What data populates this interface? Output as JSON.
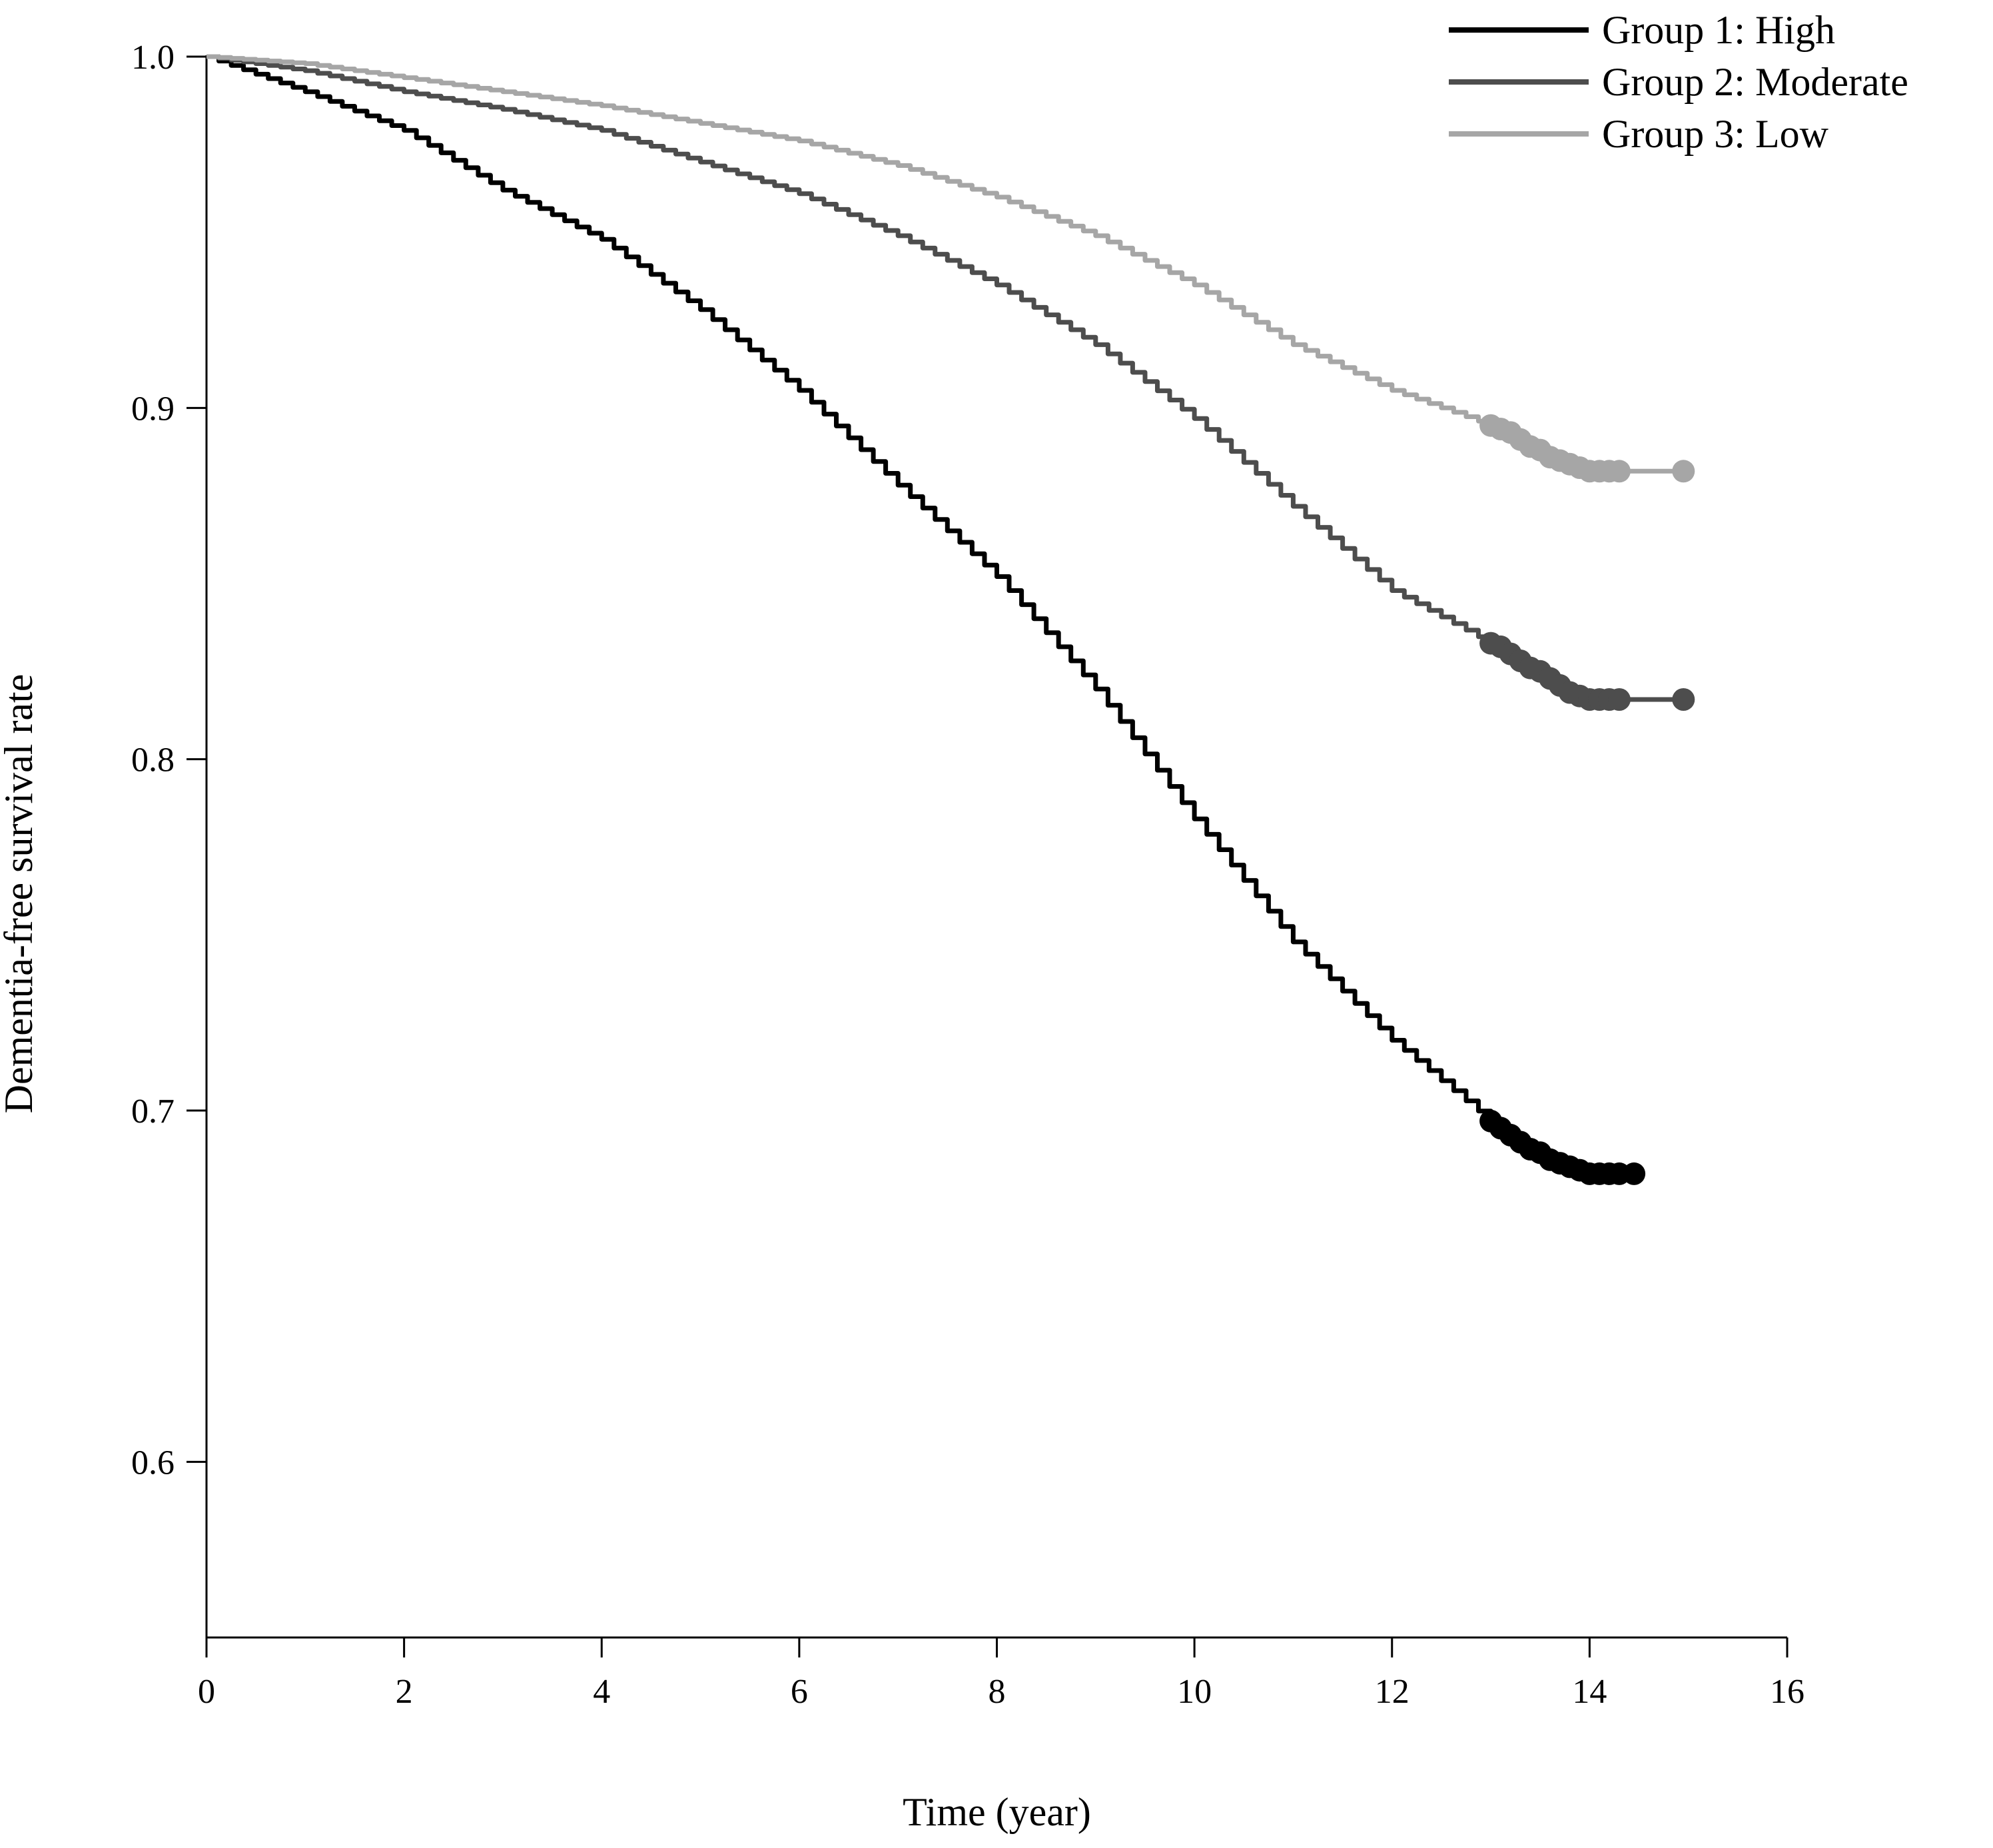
{
  "chart_data": {
    "type": "line",
    "title": "",
    "xlabel": "Time (year)",
    "ylabel": "Dementia-free survival rate",
    "xlim": [
      0,
      16
    ],
    "ylim": [
      0.55,
      1.0
    ],
    "xticks": [
      0,
      2,
      4,
      6,
      8,
      10,
      12,
      14,
      16
    ],
    "xtick_labels": [
      "0",
      "2",
      "4",
      "6",
      "8",
      "10",
      "12",
      "14",
      "16"
    ],
    "yticks": [
      0.6,
      0.7,
      0.8,
      0.9,
      1.0
    ],
    "ytick_labels": [
      "0.6",
      "0.7",
      "0.8",
      "0.9",
      "1.0"
    ],
    "grid": false,
    "legend_position": "top-right",
    "series": [
      {
        "name": "Group 1: High",
        "color": "#000000",
        "x": [
          0,
          1,
          2,
          3,
          4,
          5,
          6,
          7,
          8,
          9,
          10,
          11,
          12,
          13,
          13.5,
          14,
          14.5
        ],
        "y": [
          1.0,
          0.99,
          0.979,
          0.962,
          0.948,
          0.928,
          0.905,
          0.878,
          0.852,
          0.82,
          0.783,
          0.748,
          0.72,
          0.697,
          0.688,
          0.682,
          0.682
        ],
        "censor_x": [
          13.0,
          13.1,
          13.2,
          13.3,
          13.4,
          13.5,
          13.6,
          13.7,
          13.8,
          13.9,
          14.0,
          14.1,
          14.2,
          14.3,
          14.45
        ],
        "censor_y": [
          0.697,
          0.695,
          0.693,
          0.691,
          0.689,
          0.688,
          0.686,
          0.685,
          0.684,
          0.683,
          0.682,
          0.682,
          0.682,
          0.682,
          0.682
        ]
      },
      {
        "name": "Group 2: Moderate",
        "color": "#4d4d4d",
        "x": [
          0,
          1,
          2,
          3,
          4,
          5,
          6,
          7,
          8,
          9,
          10,
          11,
          12,
          13,
          13.5,
          14,
          15
        ],
        "y": [
          1.0,
          0.996,
          0.99,
          0.985,
          0.979,
          0.97,
          0.961,
          0.949,
          0.935,
          0.918,
          0.897,
          0.872,
          0.848,
          0.833,
          0.825,
          0.817,
          0.817
        ],
        "censor_x": [
          13.0,
          13.1,
          13.2,
          13.3,
          13.4,
          13.5,
          13.6,
          13.7,
          13.8,
          13.9,
          14.0,
          14.1,
          14.2,
          14.3,
          14.95
        ],
        "censor_y": [
          0.833,
          0.832,
          0.83,
          0.828,
          0.826,
          0.825,
          0.823,
          0.821,
          0.819,
          0.818,
          0.817,
          0.817,
          0.817,
          0.817,
          0.817
        ]
      },
      {
        "name": "Group 3: Low",
        "color": "#a6a6a6",
        "x": [
          0,
          1,
          2,
          3,
          4,
          5,
          6,
          7,
          8,
          9,
          10,
          11,
          12,
          13,
          13.5,
          14,
          15
        ],
        "y": [
          1.0,
          0.998,
          0.994,
          0.99,
          0.986,
          0.981,
          0.976,
          0.969,
          0.96,
          0.949,
          0.935,
          0.918,
          0.905,
          0.895,
          0.888,
          0.882,
          0.882
        ],
        "censor_x": [
          13.0,
          13.1,
          13.2,
          13.3,
          13.4,
          13.5,
          13.6,
          13.7,
          13.8,
          13.9,
          14.0,
          14.1,
          14.2,
          14.3,
          14.95
        ],
        "censor_y": [
          0.895,
          0.894,
          0.893,
          0.891,
          0.889,
          0.888,
          0.886,
          0.885,
          0.884,
          0.883,
          0.882,
          0.882,
          0.882,
          0.882,
          0.882
        ]
      }
    ]
  }
}
